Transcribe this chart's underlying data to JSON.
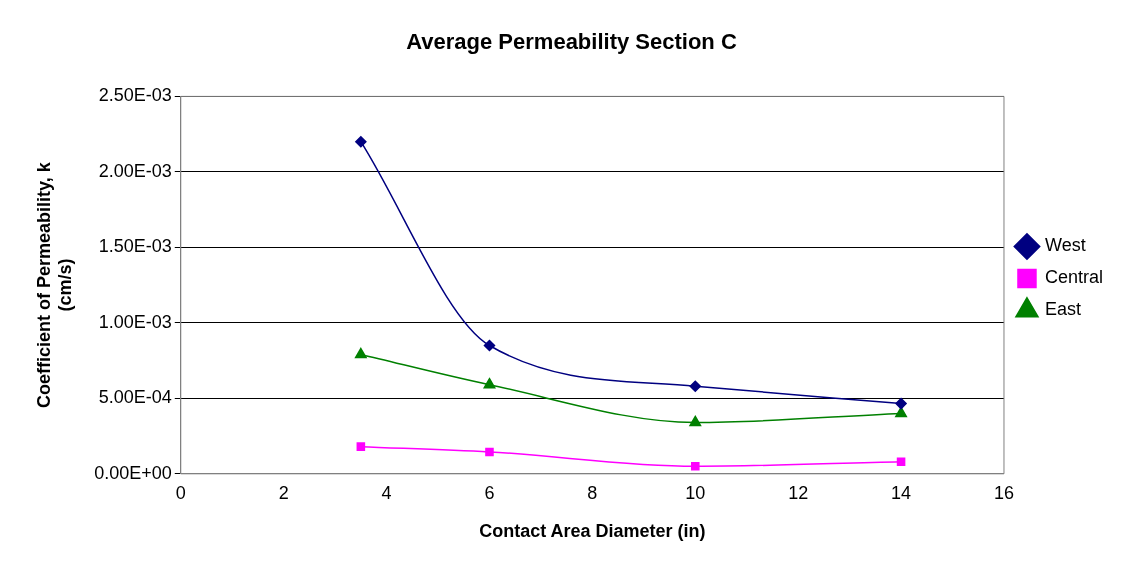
{
  "chart_data": {
    "type": "line",
    "title": "Average Permeability Section C",
    "xlabel": "Contact Area Diameter (in)",
    "ylabel": "Coefficient of Permeability, k (cm/s)",
    "x": [
      3.5,
      6,
      10,
      14
    ],
    "series": [
      {
        "name": "West",
        "color": "#000080",
        "marker": "diamond",
        "values": [
          0.0022,
          0.00085,
          0.00058,
          0.000465
        ]
      },
      {
        "name": "Central",
        "color": "#ff00ff",
        "marker": "square",
        "values": [
          0.00018,
          0.000145,
          5e-05,
          8e-05
        ]
      },
      {
        "name": "East",
        "color": "#008000",
        "marker": "triangle",
        "values": [
          0.00079,
          0.00059,
          0.00034,
          0.0004
        ]
      }
    ],
    "xlim": [
      0,
      16
    ],
    "xticks": [
      0,
      2,
      4,
      6,
      8,
      10,
      12,
      14,
      16
    ],
    "ylim": [
      0,
      0.0025
    ],
    "yticks": [
      {
        "value": 0,
        "label": "0.00E+00"
      },
      {
        "value": 0.0005,
        "label": "5.00E-04"
      },
      {
        "value": 0.001,
        "label": "1.00E-03"
      },
      {
        "value": 0.0015,
        "label": "1.50E-03"
      },
      {
        "value": 0.002,
        "label": "2.00E-03"
      },
      {
        "value": 0.0025,
        "label": "2.50E-03"
      }
    ],
    "grid": "y",
    "legend": "right"
  }
}
